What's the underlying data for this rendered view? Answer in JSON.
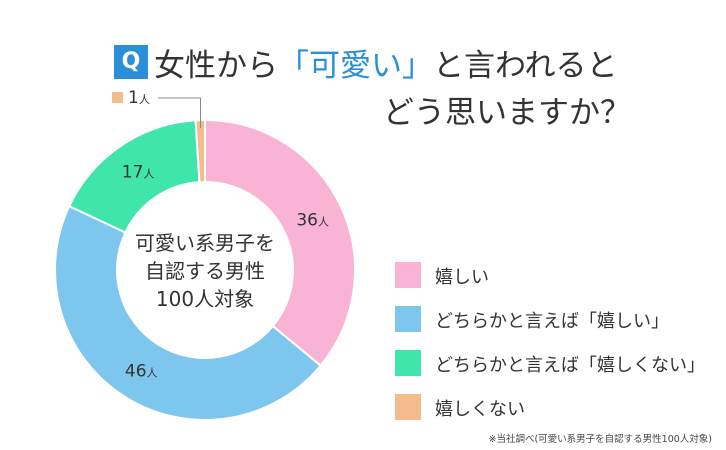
{
  "title": {
    "badge": "Q",
    "line1_before": "女性から",
    "line1_accent": "「可愛い」",
    "line1_after": "と言われると",
    "line2": "どう思いますか？"
  },
  "center_label": [
    "可愛い系男子を",
    "自認する男性",
    "100人対象"
  ],
  "unit": "人",
  "footnote": "※当社調べ(可愛い系男子を自認する男性100人対象)",
  "colors": {
    "pink": "#f9b3d5",
    "blue": "#7dc6ee",
    "green": "#3fe5ab",
    "orange": "#f4bb8c"
  },
  "chart_data": {
    "type": "pie",
    "donut": true,
    "categories": [
      "嬉しい",
      "どちらかと言えば「嬉しい」",
      "どちらかと言えば「嬉しくない」",
      "嬉しくない"
    ],
    "values": [
      36,
      46,
      17,
      1
    ],
    "data_labels": [
      "36",
      "46",
      "17",
      "1"
    ],
    "legend_position": "right"
  }
}
